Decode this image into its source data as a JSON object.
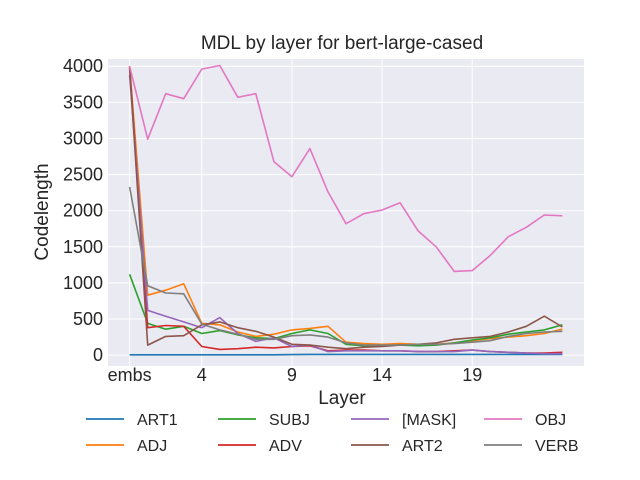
{
  "chart_data": {
    "type": "line",
    "title": "MDL by layer for bert-large-cased",
    "xlabel": "Layer",
    "ylabel": "Codelength",
    "x_tick_labels": [
      "embs",
      "4",
      "9",
      "14",
      "19"
    ],
    "y_tick_labels": [
      "0",
      "500",
      "1000",
      "1500",
      "2000",
      "2500",
      "3000",
      "3500",
      "4000"
    ],
    "xlim": [
      -1.2,
      25.2
    ],
    "ylim": [
      -150,
      4100
    ],
    "grid": true,
    "legend_position": "bottom",
    "x": [
      0,
      1,
      2,
      3,
      4,
      5,
      6,
      7,
      8,
      9,
      10,
      11,
      12,
      13,
      14,
      15,
      16,
      17,
      18,
      19,
      20,
      21,
      22,
      23,
      24
    ],
    "series": [
      {
        "name": "ART1",
        "color": "#1f77b4",
        "values": [
          5,
          5,
          5,
          5,
          5,
          5,
          5,
          5,
          5,
          8,
          10,
          10,
          10,
          10,
          10,
          10,
          10,
          10,
          10,
          10,
          10,
          10,
          10,
          10,
          10
        ]
      },
      {
        "name": "ADJ",
        "color": "#ff7f0e",
        "values": [
          4000,
          830,
          900,
          990,
          440,
          420,
          320,
          260,
          290,
          350,
          370,
          400,
          180,
          160,
          150,
          160,
          150,
          150,
          170,
          200,
          230,
          250,
          270,
          300,
          360
        ]
      },
      {
        "name": "SUBJ",
        "color": "#2ca02c",
        "values": [
          1120,
          440,
          360,
          400,
          300,
          340,
          280,
          240,
          230,
          300,
          350,
          300,
          150,
          130,
          130,
          140,
          130,
          140,
          170,
          210,
          240,
          290,
          320,
          350,
          420
        ]
      },
      {
        "name": "ADV",
        "color": "#d62728",
        "values": [
          4000,
          380,
          410,
          400,
          120,
          80,
          90,
          110,
          100,
          120,
          130,
          60,
          70,
          70,
          60,
          60,
          50,
          50,
          60,
          70,
          50,
          40,
          30,
          30,
          40
        ]
      },
      {
        "name": "[MASK]",
        "color": "#9467bd",
        "values": [
          3880,
          620,
          540,
          460,
          380,
          520,
          300,
          190,
          240,
          120,
          140,
          50,
          60,
          60,
          60,
          60,
          50,
          50,
          50,
          70,
          50,
          40,
          30,
          20,
          20
        ]
      },
      {
        "name": "ART2",
        "color": "#8c564b",
        "values": [
          3980,
          140,
          260,
          270,
          420,
          460,
          380,
          330,
          250,
          150,
          140,
          110,
          90,
          110,
          120,
          140,
          150,
          170,
          220,
          240,
          260,
          320,
          400,
          540,
          390
        ]
      },
      {
        "name": "OBJ",
        "color": "#e377c2",
        "values": [
          4000,
          2990,
          3620,
          3550,
          3960,
          4010,
          3570,
          3620,
          2680,
          2470,
          2860,
          2260,
          1820,
          1960,
          2010,
          2110,
          1720,
          1500,
          1160,
          1170,
          1380,
          1640,
          1770,
          1940,
          1930
        ]
      },
      {
        "name": "VERB",
        "color": "#7f7f7f",
        "values": [
          2330,
          960,
          860,
          850,
          430,
          350,
          290,
          220,
          220,
          270,
          280,
          250,
          170,
          140,
          140,
          140,
          150,
          150,
          160,
          180,
          200,
          260,
          300,
          320,
          330
        ]
      }
    ]
  }
}
